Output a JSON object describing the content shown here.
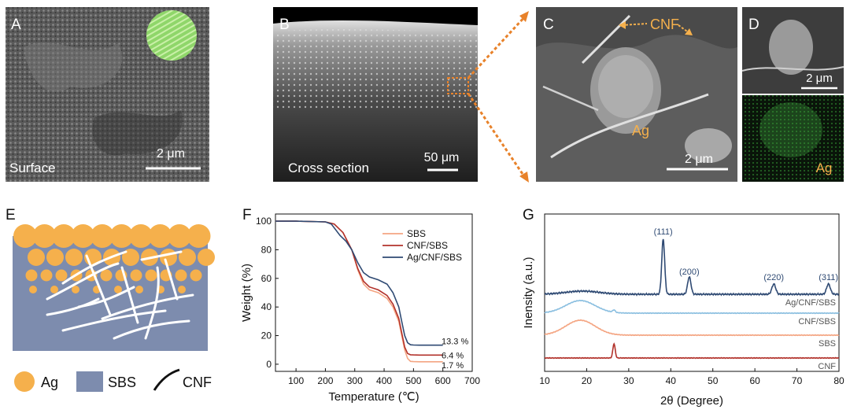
{
  "panels": {
    "A": {
      "letter": "A",
      "caption": "Surface",
      "scale_label": "2 μm"
    },
    "B": {
      "letter": "B",
      "caption": "Cross section",
      "scale_label": "50 μm"
    },
    "C": {
      "letter": "C",
      "cnf_label": "CNF",
      "ag_label": "Ag",
      "scale_label": "2 μm"
    },
    "D": {
      "letter": "D",
      "scale_label": "2 μm",
      "map_label": "Ag"
    },
    "E": {
      "letter": "E",
      "legend": [
        {
          "name": "Ag",
          "color": "#f5b04c"
        },
        {
          "name": "SBS",
          "color": "#7d8cae"
        },
        {
          "name": "CNF",
          "color": "#111111"
        }
      ]
    },
    "F": {
      "letter": "F"
    },
    "G": {
      "letter": "G"
    }
  },
  "colors": {
    "accent_orange": "#e8822a",
    "ag_particle": "#f5b04c",
    "sbs_matrix": "#7d8cae",
    "green_overlay": "#8fd66a"
  },
  "chart_data": [
    {
      "id": "F",
      "type": "line",
      "xlabel": "Temperature (℃)",
      "ylabel": "Weight (%)",
      "xlim": [
        30,
        700
      ],
      "ylim": [
        -5,
        105
      ],
      "xticks": [
        100,
        200,
        300,
        400,
        500,
        600,
        700
      ],
      "yticks": [
        0,
        20,
        40,
        60,
        80,
        100
      ],
      "legend_position": "top-right",
      "series": [
        {
          "name": "SBS",
          "color": "#f4a582",
          "x": [
            30,
            100,
            200,
            230,
            260,
            290,
            310,
            330,
            350,
            380,
            410,
            430,
            450,
            460,
            470,
            480,
            490,
            500,
            520,
            600
          ],
          "y": [
            100,
            100,
            99.5,
            98,
            92,
            80,
            66,
            56,
            52,
            50,
            46,
            40,
            30,
            20,
            10,
            4,
            2,
            1.8,
            1.7,
            1.7
          ]
        },
        {
          "name": "CNF/SBS",
          "color": "#b2322b",
          "x": [
            30,
            100,
            200,
            230,
            260,
            290,
            310,
            330,
            350,
            380,
            410,
            430,
            450,
            460,
            470,
            480,
            490,
            500,
            520,
            600
          ],
          "y": [
            100,
            100,
            99.5,
            98,
            92,
            80,
            67,
            58,
            54,
            52,
            48,
            42,
            32,
            22,
            12,
            7.5,
            6.6,
            6.5,
            6.4,
            6.4
          ]
        },
        {
          "name": "Ag/CNF/SBS",
          "color": "#2f4a73",
          "x": [
            30,
            100,
            200,
            220,
            250,
            270,
            290,
            310,
            330,
            350,
            380,
            410,
            430,
            450,
            460,
            470,
            480,
            490,
            500,
            520,
            600
          ],
          "y": [
            100,
            100,
            99.5,
            98,
            90,
            86,
            80,
            71,
            64,
            61,
            59,
            56,
            50,
            40,
            30,
            20,
            15,
            13.6,
            13.4,
            13.3,
            13.3
          ]
        }
      ],
      "annotations": [
        "13.3 %",
        "6.4 %",
        "1.7 %"
      ]
    },
    {
      "id": "G",
      "type": "line",
      "xlabel": "2θ (Degree)",
      "ylabel": "Inensity (a.u.)",
      "xlim": [
        10,
        80
      ],
      "xticks": [
        10,
        20,
        30,
        40,
        50,
        60,
        70,
        80
      ],
      "series": [
        {
          "name": "Ag/CNF/SBS",
          "color": "#2f4a73"
        },
        {
          "name": "CNF/SBS",
          "color": "#8bbfe0"
        },
        {
          "name": "SBS",
          "color": "#f4a582"
        },
        {
          "name": "CNF",
          "color": "#b2322b"
        }
      ],
      "peak_labels": [
        {
          "label": "(111)",
          "x": 38.2
        },
        {
          "label": "(200)",
          "x": 44.4
        },
        {
          "label": "(220)",
          "x": 64.5
        },
        {
          "label": "(311)",
          "x": 77.5
        }
      ]
    }
  ]
}
